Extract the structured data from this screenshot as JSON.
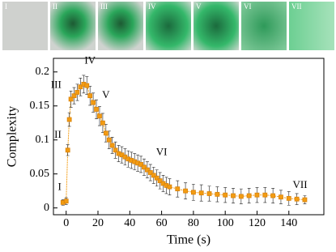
{
  "images": {
    "labels": [
      "I",
      "II",
      "III",
      "IV",
      "V",
      "VI",
      "VII"
    ]
  },
  "chart_data": {
    "type": "line",
    "xlabel": "Time (s)",
    "ylabel": "Complexity",
    "color": "#f39c12",
    "x": [
      -2,
      0,
      1,
      2,
      3,
      5,
      7,
      9,
      11,
      13,
      15,
      17,
      19,
      21,
      23,
      25,
      27,
      29,
      31,
      33,
      35,
      37,
      39,
      41,
      43,
      45,
      47,
      49,
      51,
      53,
      55,
      57,
      59,
      61,
      63,
      65,
      70,
      75,
      80,
      85,
      90,
      95,
      100,
      105,
      110,
      115,
      120,
      125,
      130,
      135,
      140,
      145,
      150
    ],
    "values": [
      0.008,
      0.01,
      0.085,
      0.13,
      0.16,
      0.165,
      0.17,
      0.178,
      0.182,
      0.18,
      0.165,
      0.155,
      0.145,
      0.135,
      0.125,
      0.11,
      0.1,
      0.092,
      0.085,
      0.08,
      0.078,
      0.075,
      0.072,
      0.07,
      0.068,
      0.066,
      0.064,
      0.06,
      0.056,
      0.052,
      0.048,
      0.044,
      0.04,
      0.036,
      0.033,
      0.031,
      0.028,
      0.025,
      0.023,
      0.022,
      0.021,
      0.02,
      0.019,
      0.018,
      0.017,
      0.018,
      0.019,
      0.019,
      0.018,
      0.016,
      0.014,
      0.013,
      0.012
    ],
    "errors": [
      0.004,
      0.005,
      0.008,
      0.01,
      0.012,
      0.012,
      0.012,
      0.013,
      0.013,
      0.013,
      0.014,
      0.014,
      0.014,
      0.014,
      0.014,
      0.013,
      0.013,
      0.012,
      0.012,
      0.012,
      0.012,
      0.012,
      0.012,
      0.012,
      0.012,
      0.012,
      0.012,
      0.012,
      0.012,
      0.012,
      0.012,
      0.012,
      0.012,
      0.012,
      0.012,
      0.012,
      0.012,
      0.012,
      0.012,
      0.012,
      0.011,
      0.011,
      0.011,
      0.011,
      0.011,
      0.011,
      0.011,
      0.011,
      0.011,
      0.01,
      0.01,
      0.008,
      0.006
    ],
    "xlim": [
      -8,
      162
    ],
    "ylim": [
      -0.01,
      0.22
    ],
    "xticks": [
      0,
      20,
      40,
      60,
      80,
      100,
      120,
      140
    ],
    "yticks": [
      0,
      0.05,
      0.1,
      0.15,
      0.2
    ],
    "annotations": [
      {
        "text": "I",
        "x": -3,
        "y": 0.03
      },
      {
        "text": "II",
        "x": -3,
        "y": 0.107
      },
      {
        "text": "III",
        "x": -3,
        "y": 0.18
      },
      {
        "text": "IV",
        "x": 15,
        "y": 0.216
      },
      {
        "text": "V",
        "x": 25,
        "y": 0.165
      },
      {
        "text": "VI",
        "x": 60,
        "y": 0.081
      },
      {
        "text": "VII",
        "x": 147,
        "y": 0.033
      }
    ]
  }
}
